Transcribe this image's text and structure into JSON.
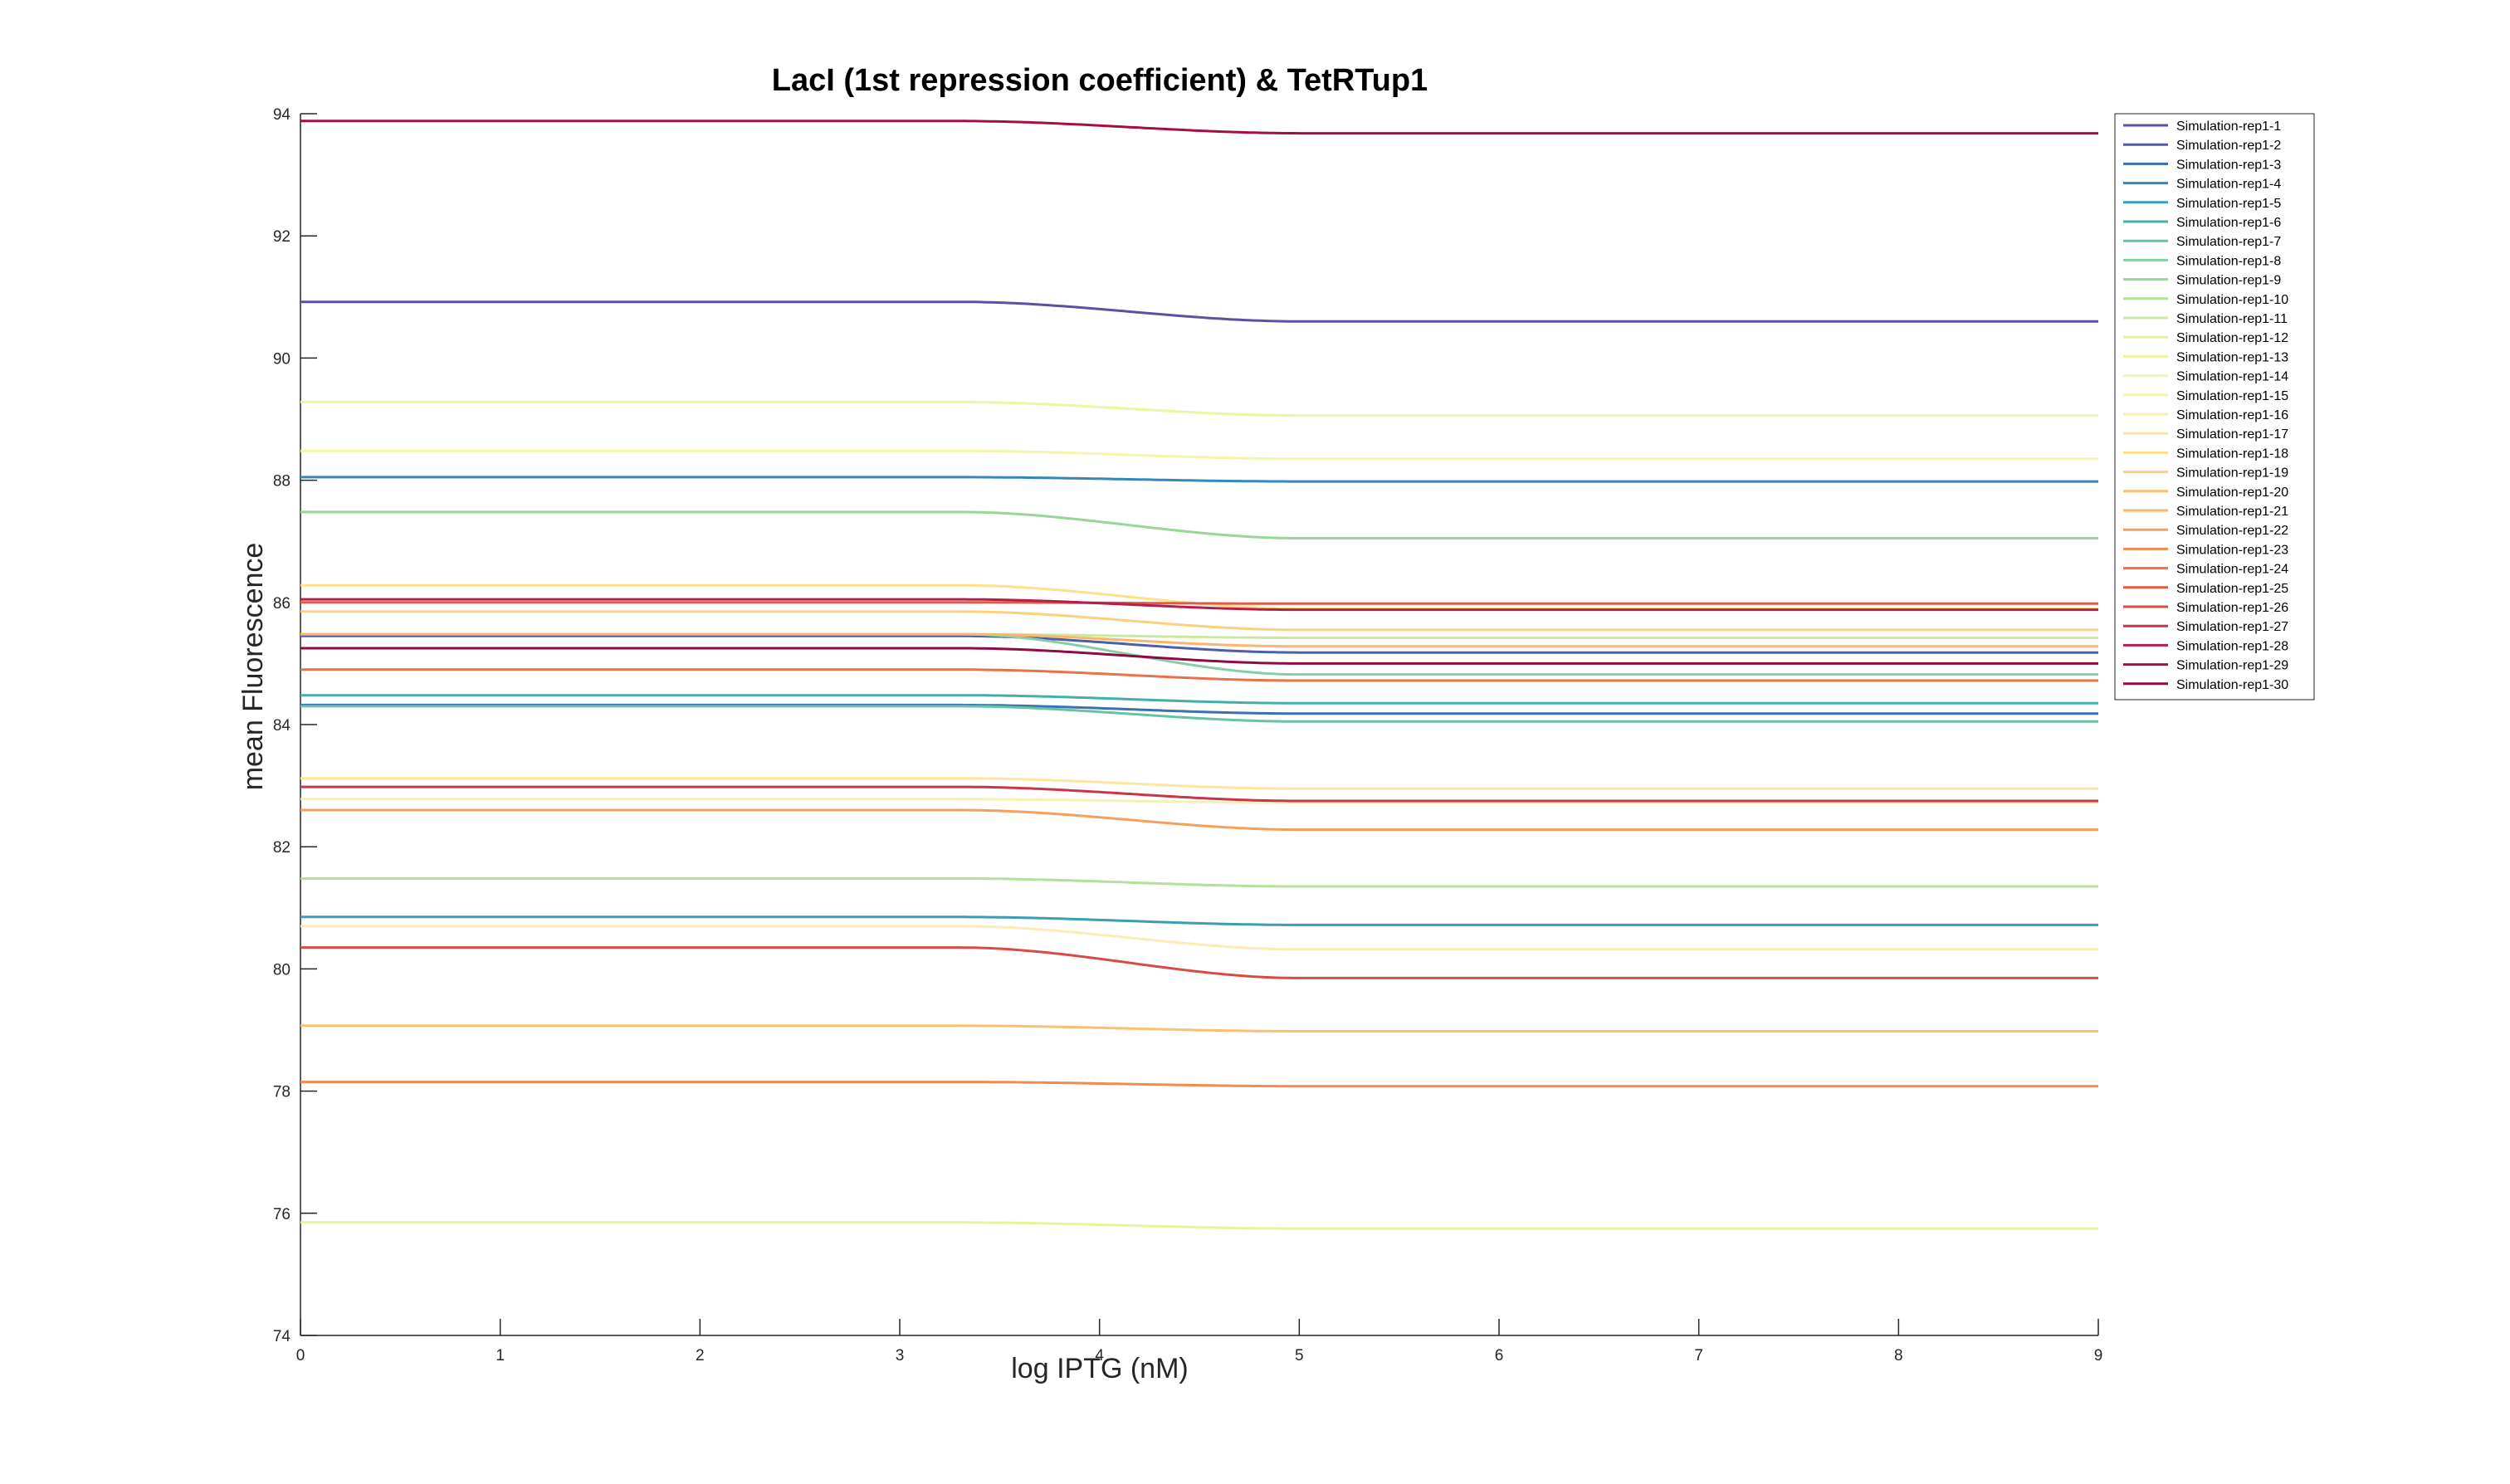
{
  "chart_data": {
    "type": "line",
    "title": "LacI (1st repression coefficient) & TetRTup1",
    "xlabel": "log IPTG (nM)",
    "ylabel": "mean Fluorescence",
    "xlim": [
      0,
      9
    ],
    "ylim": [
      74,
      94
    ],
    "xticks": [
      0,
      1,
      2,
      3,
      4,
      5,
      6,
      7,
      8,
      9
    ],
    "yticks": [
      74,
      76,
      78,
      80,
      82,
      84,
      86,
      88,
      90,
      92,
      94
    ],
    "grid": false,
    "legend_location": "top-right outside",
    "transition": {
      "start": 3.3,
      "end": 5.0
    },
    "series": [
      {
        "name": "Simulation-rep1-1",
        "color": "#5e4fa2",
        "y_start": 90.92,
        "y_end": 90.6
      },
      {
        "name": "Simulation-rep1-2",
        "color": "#4a5ea9",
        "y_start": 85.45,
        "y_end": 85.18
      },
      {
        "name": "Simulation-rep1-3",
        "color": "#3a72b0",
        "y_start": 84.32,
        "y_end": 84.18
      },
      {
        "name": "Simulation-rep1-4",
        "color": "#3288bd",
        "y_start": 88.05,
        "y_end": 87.98
      },
      {
        "name": "Simulation-rep1-5",
        "color": "#3a9db4",
        "y_start": 80.85,
        "y_end": 80.72
      },
      {
        "name": "Simulation-rep1-6",
        "color": "#43b0a7",
        "y_start": 84.48,
        "y_end": 84.35
      },
      {
        "name": "Simulation-rep1-7",
        "color": "#66c2a5",
        "y_start": 84.3,
        "y_end": 84.05
      },
      {
        "name": "Simulation-rep1-8",
        "color": "#86cfa5",
        "y_start": 85.48,
        "y_end": 84.82
      },
      {
        "name": "Simulation-rep1-9",
        "color": "#99d594",
        "y_start": 87.48,
        "y_end": 87.05
      },
      {
        "name": "Simulation-rep1-10",
        "color": "#b3e09d",
        "y_start": 81.48,
        "y_end": 81.35
      },
      {
        "name": "Simulation-rep1-11",
        "color": "#cbe99e",
        "y_start": 85.48,
        "y_end": 85.42
      },
      {
        "name": "Simulation-rep1-12",
        "color": "#e6f598",
        "y_start": 75.85,
        "y_end": 75.75
      },
      {
        "name": "Simulation-rep1-13",
        "color": "#eef5a0",
        "y_start": 89.28,
        "y_end": 89.06
      },
      {
        "name": "Simulation-rep1-14",
        "color": "#f4f5a8",
        "y_start": 88.48,
        "y_end": 88.35
      },
      {
        "name": "Simulation-rep1-15",
        "color": "#f7f0b3",
        "y_start": 82.78,
        "y_end": 82.72
      },
      {
        "name": "Simulation-rep1-16",
        "color": "#fbecb5",
        "y_start": 80.7,
        "y_end": 80.32
      },
      {
        "name": "Simulation-rep1-17",
        "color": "#fee6a0",
        "y_start": 83.12,
        "y_end": 82.95
      },
      {
        "name": "Simulation-rep1-18",
        "color": "#fee08b",
        "y_start": 86.28,
        "y_end": 85.9
      },
      {
        "name": "Simulation-rep1-19",
        "color": "#fed07e",
        "y_start": 85.85,
        "y_end": 85.55
      },
      {
        "name": "Simulation-rep1-20",
        "color": "#fdbf6f",
        "y_start": 79.07,
        "y_end": 78.98
      },
      {
        "name": "Simulation-rep1-21",
        "color": "#fdb567",
        "y_start": 85.48,
        "y_end": 85.28
      },
      {
        "name": "Simulation-rep1-22",
        "color": "#f4a05a",
        "y_start": 82.6,
        "y_end": 82.28
      },
      {
        "name": "Simulation-rep1-23",
        "color": "#f08a4f",
        "y_start": 78.15,
        "y_end": 78.08
      },
      {
        "name": "Simulation-rep1-24",
        "color": "#e8714a",
        "y_start": 84.9,
        "y_end": 84.72
      },
      {
        "name": "Simulation-rep1-25",
        "color": "#e05a45",
        "y_start": 86.0,
        "y_end": 85.98
      },
      {
        "name": "Simulation-rep1-26",
        "color": "#d94a47",
        "y_start": 80.35,
        "y_end": 79.85
      },
      {
        "name": "Simulation-rep1-27",
        "color": "#c8344a",
        "y_start": 82.98,
        "y_end": 82.75
      },
      {
        "name": "Simulation-rep1-28",
        "color": "#b61e4a",
        "y_start": 86.05,
        "y_end": 85.88
      },
      {
        "name": "Simulation-rep1-29",
        "color": "#a30d48",
        "y_start": 93.88,
        "y_end": 93.68
      },
      {
        "name": "Simulation-rep1-30",
        "color": "#8e0b45",
        "y_start": 85.25,
        "y_end": 85.0
      }
    ]
  }
}
